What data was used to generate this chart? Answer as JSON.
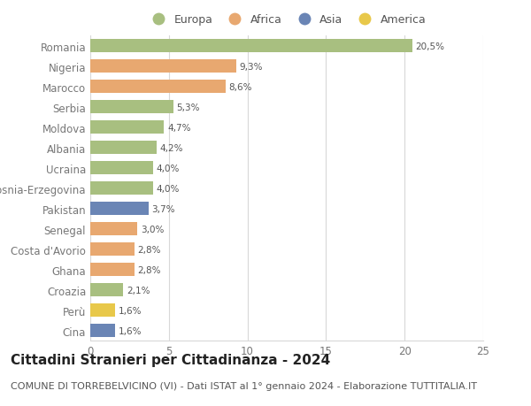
{
  "categories": [
    "Cina",
    "Perù",
    "Croazia",
    "Ghana",
    "Costa d'Avorio",
    "Senegal",
    "Pakistan",
    "Bosnia-Erzegovina",
    "Ucraina",
    "Albania",
    "Moldova",
    "Serbia",
    "Marocco",
    "Nigeria",
    "Romania"
  ],
  "values": [
    1.6,
    1.6,
    2.1,
    2.8,
    2.8,
    3.0,
    3.7,
    4.0,
    4.0,
    4.2,
    4.7,
    5.3,
    8.6,
    9.3,
    20.5
  ],
  "colors": [
    "#6a85b5",
    "#e8c84a",
    "#a8bf80",
    "#e8a870",
    "#e8a870",
    "#e8a870",
    "#6a85b5",
    "#a8bf80",
    "#a8bf80",
    "#a8bf80",
    "#a8bf80",
    "#a8bf80",
    "#e8a870",
    "#e8a870",
    "#a8bf80"
  ],
  "labels": [
    "1,6%",
    "1,6%",
    "2,1%",
    "2,8%",
    "2,8%",
    "3,0%",
    "3,7%",
    "4,0%",
    "4,0%",
    "4,2%",
    "4,7%",
    "5,3%",
    "8,6%",
    "9,3%",
    "20,5%"
  ],
  "legend_labels": [
    "Europa",
    "Africa",
    "Asia",
    "America"
  ],
  "legend_colors": [
    "#a8bf80",
    "#e8a870",
    "#6a85b5",
    "#e8c84a"
  ],
  "xlim": [
    0,
    25
  ],
  "xticks": [
    0,
    5,
    10,
    15,
    20,
    25
  ],
  "title": "Cittadini Stranieri per Cittadinanza - 2024",
  "subtitle": "COMUNE DI TORREBELVICINO (VI) - Dati ISTAT al 1° gennaio 2024 - Elaborazione TUTTITALIA.IT",
  "title_fontsize": 11,
  "subtitle_fontsize": 8,
  "background_color": "#ffffff",
  "grid_color": "#d8d8d8",
  "bar_height": 0.65
}
